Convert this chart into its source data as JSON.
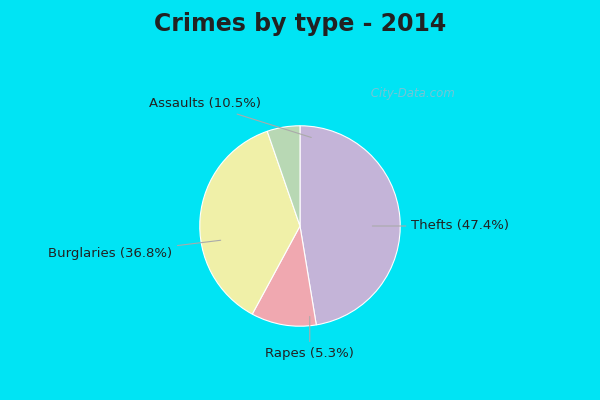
{
  "title": "Crimes by type - 2014",
  "slices": [
    {
      "label": "Thefts",
      "pct": 47.4,
      "color": "#c4b4d8"
    },
    {
      "label": "Assaults",
      "pct": 10.5,
      "color": "#f0a8b0"
    },
    {
      "label": "Burglaries",
      "pct": 36.8,
      "color": "#f0f0a8"
    },
    {
      "label": "Rapes",
      "pct": 5.3,
      "color": "#b8d8b4"
    }
  ],
  "bg_color_top": "#00e4f4",
  "bg_color_main": "#d0ece0",
  "title_fontsize": 17,
  "label_fontsize": 9.5,
  "watermark": " City-Data.com",
  "title_color": "#222222",
  "label_color": "#222222",
  "arrow_color": "#aaaaaa"
}
